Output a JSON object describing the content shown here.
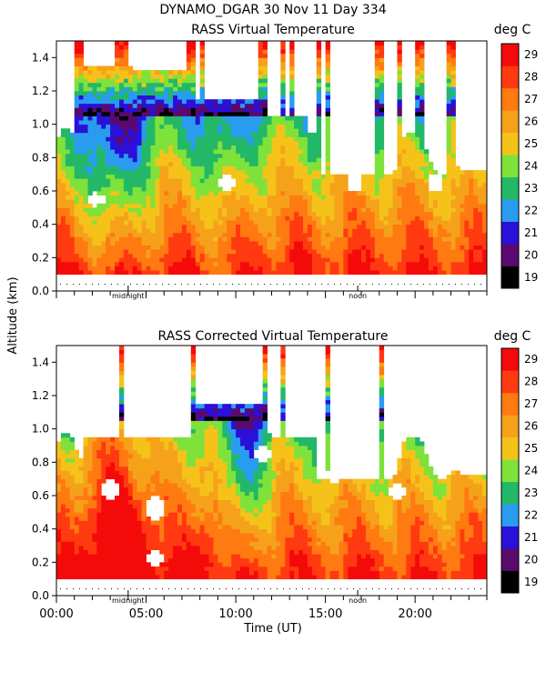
{
  "header": {
    "main_title": "DYNAMO_DGAR  30 Nov 11 Day 334"
  },
  "shared": {
    "ylabel": "Altitude (km)",
    "xlabel": "Time (UT)",
    "x_ticks": [
      "00:00",
      "05:00",
      "10:00",
      "15:00",
      "20:00"
    ],
    "midnight_label": "midnight",
    "noon_label": "noon"
  },
  "chart_data": [
    {
      "type": "heatmap",
      "title": "RASS Virtual Temperature",
      "colorbar_label": "deg C",
      "xlim": [
        0,
        24
      ],
      "ylim": [
        0,
        1.5
      ],
      "y_ticks": [
        "0.0",
        "0.2",
        "0.4",
        "0.6",
        "0.8",
        "1.0",
        "1.2",
        "1.4"
      ],
      "colorbar_ticks": [
        "19",
        "20",
        "21",
        "22",
        "23",
        "24",
        "25",
        "26",
        "27",
        "28",
        "29"
      ]
    },
    {
      "type": "heatmap",
      "title": "RASS Corrected Virtual Temperature",
      "colorbar_label": "deg C",
      "xlim": [
        0,
        24
      ],
      "ylim": [
        0,
        1.5
      ],
      "y_ticks": [
        "0.0",
        "0.2",
        "0.4",
        "0.6",
        "0.8",
        "1.0",
        "1.2",
        "1.4"
      ],
      "colorbar_ticks": [
        "19",
        "20",
        "21",
        "22",
        "23",
        "24",
        "25",
        "26",
        "27",
        "28",
        "29"
      ]
    }
  ],
  "colors": {
    "levels": [
      "#000000",
      "#5a0a6e",
      "#2a10d8",
      "#2a9cf0",
      "#22b868",
      "#7ee23a",
      "#f5c21a",
      "#f5a21a",
      "#ff7a10",
      "#ff3a10",
      "#f50a0a"
    ]
  }
}
